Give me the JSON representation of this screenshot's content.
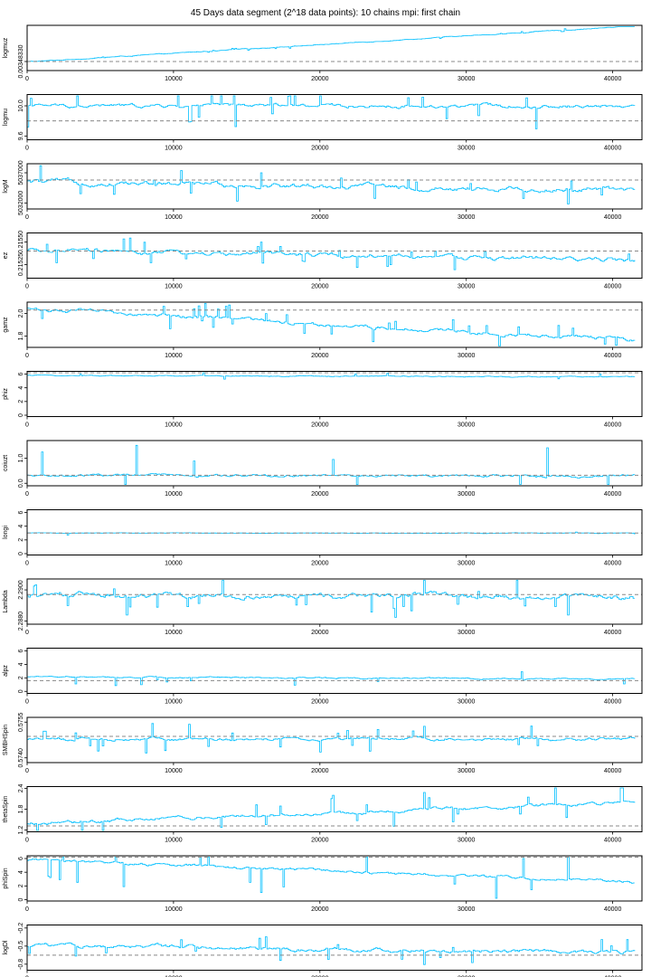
{
  "title": "45 Days data segment (2^18 data points): 10 chains mpi: first chain",
  "colors": {
    "trace": "#00bfff",
    "reference": "#888888",
    "frame": "#000000"
  },
  "chart_data": [
    {
      "type": "line",
      "ylabel": "logmuz",
      "xlim": [
        0,
        42000
      ],
      "xticks": [
        0,
        10000,
        20000,
        30000,
        40000
      ],
      "x_range": [
        0,
        41500
      ],
      "ylim": [
        0.00348325,
        0.0034835
      ],
      "yticks": [
        {
          "value": 0.0034833,
          "label": "0.00348330"
        }
      ],
      "reference": 0.0034833,
      "start": 0.0034833,
      "end": 0.0034835,
      "spread": 2.5e-09,
      "jump_prob": 0.05,
      "jump_size": 6e-09
    },
    {
      "type": "line",
      "ylabel": "logmu",
      "xlim": [
        0,
        42000
      ],
      "xticks": [
        0,
        10000,
        20000,
        30000,
        40000
      ],
      "x_range": [
        0,
        41500
      ],
      "ylim": [
        9.55,
        10.15
      ],
      "yticks": [
        {
          "value": 9.6,
          "label": "9.6"
        },
        {
          "value": 10.0,
          "label": "10.0"
        }
      ],
      "reference": 9.8,
      "start": 10.0,
      "end": 10.0,
      "spread": 0.03,
      "jump_prob": 0.06,
      "jump_size": 0.2
    },
    {
      "type": "line",
      "ylabel": "logM",
      "xlim": [
        0,
        42000
      ],
      "xticks": [
        0,
        10000,
        20000,
        30000,
        40000
      ],
      "x_range": [
        0,
        41500
      ],
      "ylim": [
        5031000,
        5038500
      ],
      "yticks": [
        {
          "value": 5032000,
          "label": "5032000"
        },
        {
          "value": 5037000,
          "label": "5037000"
        }
      ],
      "reference": 5035800,
      "start": 5035500,
      "end": 5034000,
      "spread": 500,
      "jump_prob": 0.05,
      "jump_size": 1800
    },
    {
      "type": "line",
      "ylabel": "ez",
      "xlim": [
        0,
        42000
      ],
      "xticks": [
        0,
        10000,
        20000,
        30000,
        40000
      ],
      "x_range": [
        0,
        41500
      ],
      "ylim": [
        0.2151,
        0.2156
      ],
      "yticks": [
        {
          "value": 0.21525,
          "label": "0.21525"
        },
        {
          "value": 0.2155,
          "label": "0.21550"
        }
      ],
      "reference": 0.2154,
      "start": 0.2154,
      "end": 0.2153,
      "spread": 3e-05,
      "jump_prob": 0.06,
      "jump_size": 0.0001
    },
    {
      "type": "line",
      "ylabel": "gamz",
      "xlim": [
        0,
        42000
      ],
      "xticks": [
        0,
        10000,
        20000,
        30000,
        40000
      ],
      "x_range": [
        0,
        41500
      ],
      "ylim": [
        1.7,
        2.1
      ],
      "yticks": [
        {
          "value": 1.8,
          "label": "1.8"
        },
        {
          "value": 2.0,
          "label": "2.0"
        }
      ],
      "reference": 2.03,
      "start": 2.04,
      "end": 1.76,
      "spread": 0.02,
      "jump_prob": 0.05,
      "jump_size": 0.08
    },
    {
      "type": "line",
      "ylabel": "phiz",
      "xlim": [
        0,
        42000
      ],
      "xticks": [
        0,
        10000,
        20000,
        30000,
        40000
      ],
      "x_range": [
        0,
        41500
      ],
      "ylim": [
        -0.2,
        6.4
      ],
      "yticks": [
        {
          "value": 0,
          "label": "0"
        },
        {
          "value": 2,
          "label": "2"
        },
        {
          "value": 4,
          "label": "4"
        },
        {
          "value": 6,
          "label": "6"
        }
      ],
      "reference": 6.2,
      "start": 5.8,
      "end": 5.6,
      "spread": 0.08,
      "jump_prob": 0.02,
      "jump_size": 0.3
    },
    {
      "type": "line",
      "ylabel": "coiuzt",
      "xlim": [
        0,
        42000
      ],
      "xticks": [
        0,
        10000,
        20000,
        30000,
        40000
      ],
      "x_range": [
        0,
        41500
      ],
      "ylim": [
        -0.1,
        1.7
      ],
      "yticks": [
        {
          "value": 0,
          "label": "0.0"
        },
        {
          "value": 1.0,
          "label": "1.0"
        }
      ],
      "reference": 0.32,
      "start": 0.3,
      "end": 0.3,
      "spread": 0.06,
      "jump_prob": 0.04,
      "jump_size": 0.8
    },
    {
      "type": "line",
      "ylabel": "longi",
      "xlim": [
        0,
        42000
      ],
      "xticks": [
        0,
        10000,
        20000,
        30000,
        40000
      ],
      "x_range": [
        0,
        41500
      ],
      "ylim": [
        -0.2,
        6.4
      ],
      "yticks": [
        {
          "value": 0,
          "label": "0"
        },
        {
          "value": 2,
          "label": "2"
        },
        {
          "value": 4,
          "label": "4"
        },
        {
          "value": 6,
          "label": "6"
        }
      ],
      "reference": 3.0,
      "start": 3.0,
      "end": 3.0,
      "spread": 0.05,
      "jump_prob": 0.01,
      "jump_size": 0.2
    },
    {
      "type": "line",
      "ylabel": "Lambda",
      "xlim": [
        0,
        42000
      ],
      "xticks": [
        0,
        10000,
        20000,
        30000,
        40000
      ],
      "x_range": [
        0,
        41500
      ],
      "ylim": [
        2.2878,
        2.2907
      ],
      "yticks": [
        {
          "value": 2.288,
          "label": "2.2880"
        },
        {
          "value": 2.29,
          "label": "2.2900"
        }
      ],
      "reference": 2.2897,
      "start": 2.2897,
      "end": 2.2895,
      "spread": 0.0002,
      "jump_prob": 0.06,
      "jump_size": 0.0009
    },
    {
      "type": "line",
      "ylabel": "alpz",
      "xlim": [
        0,
        42000
      ],
      "xticks": [
        0,
        10000,
        20000,
        30000,
        40000
      ],
      "x_range": [
        0,
        41500
      ],
      "ylim": [
        -0.3,
        6.4
      ],
      "yticks": [
        {
          "value": 0,
          "label": "0"
        },
        {
          "value": 2,
          "label": "2"
        },
        {
          "value": 4,
          "label": "4"
        },
        {
          "value": 6,
          "label": "6"
        }
      ],
      "reference": 1.6,
      "start": 2.2,
      "end": 1.8,
      "spread": 0.12,
      "jump_prob": 0.04,
      "jump_size": 0.8
    },
    {
      "type": "line",
      "ylabel": "SMBHSpin",
      "xlim": [
        0,
        42000
      ],
      "xticks": [
        0,
        10000,
        20000,
        30000,
        40000
      ],
      "x_range": [
        0,
        41500
      ],
      "ylim": [
        0.5738,
        0.5757
      ],
      "yticks": [
        {
          "value": 0.574,
          "label": "0.5740"
        },
        {
          "value": 0.5755,
          "label": "0.5755"
        }
      ],
      "reference": 0.5749,
      "start": 0.5748,
      "end": 0.5748,
      "spread": 8e-05,
      "jump_prob": 0.06,
      "jump_size": 0.0004
    },
    {
      "type": "line",
      "ylabel": "thetaSpin",
      "xlim": [
        0,
        42000
      ],
      "xticks": [
        0,
        10000,
        20000,
        30000,
        40000
      ],
      "x_range": [
        0,
        41500
      ],
      "ylim": [
        1.15,
        2.45
      ],
      "yticks": [
        {
          "value": 1.2,
          "label": "1.2"
        },
        {
          "value": 1.8,
          "label": "1.8"
        },
        {
          "value": 2.4,
          "label": "2.4"
        }
      ],
      "reference": 1.32,
      "start": 1.4,
      "end": 2.0,
      "spread": 0.06,
      "jump_prob": 0.06,
      "jump_size": 0.35
    },
    {
      "type": "line",
      "ylabel": "phiSpin",
      "xlim": [
        0,
        42000
      ],
      "xticks": [
        0,
        10000,
        20000,
        30000,
        40000
      ],
      "x_range": [
        0,
        41500
      ],
      "ylim": [
        -0.2,
        6.4
      ],
      "yticks": [
        {
          "value": 0,
          "label": "0"
        },
        {
          "value": 2,
          "label": "2"
        },
        {
          "value": 4,
          "label": "4"
        },
        {
          "value": 6,
          "label": "6"
        }
      ],
      "reference": 6.2,
      "start": 5.8,
      "end": 2.5,
      "spread": 0.25,
      "jump_prob": 0.07,
      "jump_size": 2.5
    },
    {
      "type": "line",
      "ylabel": "logDl",
      "xlim": [
        0,
        42000
      ],
      "xticks": [
        0,
        10000,
        20000,
        30000,
        40000
      ],
      "x_range": [
        0,
        41500
      ],
      "ylim": [
        -0.9,
        -0.15
      ],
      "yticks": [
        {
          "value": -0.8,
          "label": "-0.8"
        },
        {
          "value": -0.5,
          "label": "-0.5"
        },
        {
          "value": -0.2,
          "label": "-0.2"
        }
      ],
      "reference": -0.65,
      "start": -0.5,
      "end": -0.6,
      "spread": 0.04,
      "jump_prob": 0.04,
      "jump_size": 0.15
    }
  ]
}
